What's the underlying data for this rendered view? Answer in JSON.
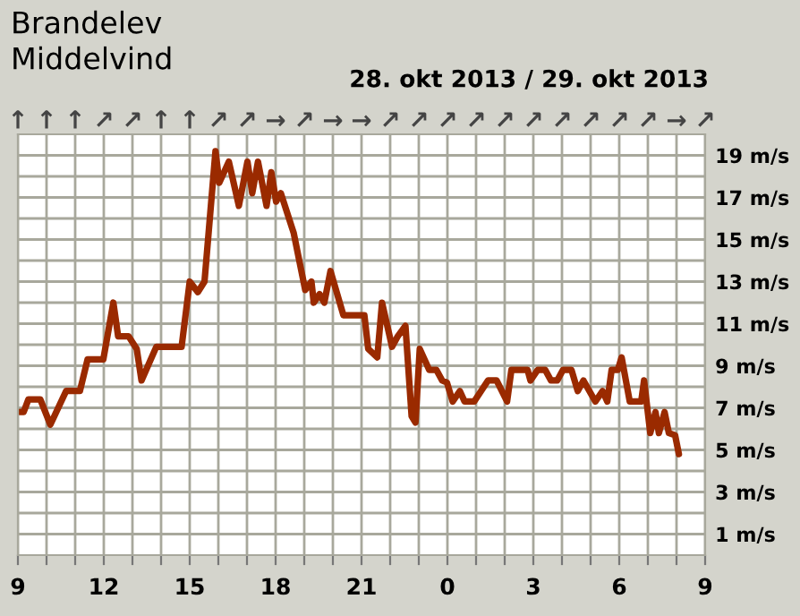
{
  "chart_data": {
    "type": "line",
    "title": "Brandelev",
    "subtitle": "Middelvind",
    "annotations": [
      "28. okt 2013 / 29. okt 2013",
      "↑ ↑ ↑ ↗ ↗ ↑ ↑ ↗ ↗ → ↗ → → ↗ ↗ ↗ ↗ ↗ ↗ ↗ ↗ ↗ ↗ → ↗"
    ],
    "series": [
      {
        "color": "#9a2a00",
        "x": [
          "2013-10-28T09:04",
          "2013-10-28T09:12",
          "2013-10-28T09:22",
          "2013-10-28T09:47",
          "2013-10-28T10:08",
          "2013-10-28T10:41",
          "2013-10-28T11:10",
          "2013-10-28T11:26",
          "2013-10-28T11:59",
          "2013-10-28T12:20",
          "2013-10-28T12:30",
          "2013-10-28T12:52",
          "2013-10-28T13:09",
          "2013-10-28T13:19",
          "2013-10-28T13:50",
          "2013-10-28T14:43",
          "2013-10-28T15:00",
          "2013-10-28T15:17",
          "2013-10-28T15:31",
          "2013-10-28T15:54",
          "2013-10-28T16:02",
          "2013-10-28T16:22",
          "2013-10-28T16:43",
          "2013-10-28T17:01",
          "2013-10-28T17:11",
          "2013-10-28T17:23",
          "2013-10-28T17:41",
          "2013-10-28T17:51",
          "2013-10-28T18:01",
          "2013-10-28T18:11",
          "2013-10-28T18:38",
          "2013-10-28T19:02",
          "2013-10-28T19:15",
          "2013-10-28T19:20",
          "2013-10-28T19:32",
          "2013-10-28T19:42",
          "2013-10-28T19:55",
          "2013-10-28T20:22",
          "2013-10-28T21:06",
          "2013-10-28T21:14",
          "2013-10-28T21:33",
          "2013-10-28T21:43",
          "2013-10-28T22:04",
          "2013-10-28T22:16",
          "2013-10-28T22:32",
          "2013-10-28T22:45",
          "2013-10-28T22:53",
          "2013-10-28T23:02",
          "2013-10-28T23:22",
          "2013-10-28T23:37",
          "2013-10-28T23:49",
          "2013-10-28T23:59",
          "2013-10-29T00:11",
          "2013-10-29T00:26",
          "2013-10-29T00:36",
          "2013-10-29T00:56",
          "2013-10-29T01:25",
          "2013-10-29T01:43",
          "2013-10-29T02:05",
          "2013-10-29T02:14",
          "2013-10-29T02:48",
          "2013-10-29T02:54",
          "2013-10-29T03:09",
          "2013-10-29T03:25",
          "2013-10-29T03:37",
          "2013-10-29T03:50",
          "2013-10-29T04:02",
          "2013-10-29T04:20",
          "2013-10-29T04:33",
          "2013-10-29T04:45",
          "2013-10-29T05:10",
          "2013-10-29T05:25",
          "2013-10-29T05:35",
          "2013-10-29T05:44",
          "2013-10-29T05:57",
          "2013-10-29T06:05",
          "2013-10-29T06:22",
          "2013-10-29T06:46",
          "2013-10-29T06:52",
          "2013-10-29T07:05",
          "2013-10-29T07:16",
          "2013-10-29T07:23",
          "2013-10-29T07:35",
          "2013-10-29T07:44",
          "2013-10-29T07:57",
          "2013-10-29T08:05"
        ],
        "values": [
          6.8,
          6.8,
          7.4,
          7.4,
          6.2,
          7.8,
          7.8,
          9.3,
          9.3,
          12.0,
          10.4,
          10.4,
          9.8,
          8.3,
          9.9,
          9.9,
          13.0,
          12.5,
          13.0,
          19.2,
          17.7,
          18.7,
          16.6,
          18.7,
          17.2,
          18.7,
          16.6,
          18.2,
          16.8,
          17.2,
          15.3,
          12.6,
          13.0,
          12.0,
          12.4,
          12.0,
          13.5,
          11.4,
          11.4,
          9.8,
          9.4,
          12.0,
          9.9,
          10.4,
          10.9,
          6.6,
          6.3,
          9.8,
          8.8,
          8.8,
          8.3,
          8.2,
          7.3,
          7.8,
          7.3,
          7.3,
          8.3,
          8.3,
          7.3,
          8.8,
          8.8,
          8.3,
          8.8,
          8.8,
          8.3,
          8.3,
          8.8,
          8.8,
          7.8,
          8.3,
          7.3,
          7.8,
          7.3,
          8.8,
          8.8,
          9.4,
          7.3,
          7.3,
          8.3,
          5.8,
          6.8,
          5.8,
          6.8,
          5.8,
          5.7,
          4.8
        ]
      }
    ],
    "xlim": [
      "2013-10-28T09:00",
      "2013-10-29T09:00"
    ],
    "xticks": [
      {
        "value": "2013-10-28T09:00",
        "label": "9"
      },
      {
        "value": "2013-10-28T10:00",
        "label": null
      },
      {
        "value": "2013-10-28T11:00",
        "label": null
      },
      {
        "value": "2013-10-28T12:00",
        "label": "12"
      },
      {
        "value": "2013-10-28T13:00",
        "label": null
      },
      {
        "value": "2013-10-28T14:00",
        "label": null
      },
      {
        "value": "2013-10-28T15:00",
        "label": "15"
      },
      {
        "value": "2013-10-28T16:00",
        "label": null
      },
      {
        "value": "2013-10-28T17:00",
        "label": null
      },
      {
        "value": "2013-10-28T18:00",
        "label": "18"
      },
      {
        "value": "2013-10-28T19:00",
        "label": null
      },
      {
        "value": "2013-10-28T20:00",
        "label": null
      },
      {
        "value": "2013-10-28T21:00",
        "label": "21"
      },
      {
        "value": "2013-10-28T22:00",
        "label": null
      },
      {
        "value": "2013-10-28T23:00",
        "label": null
      },
      {
        "value": "2013-10-29T00:00",
        "label": "0"
      },
      {
        "value": "2013-10-29T01:00",
        "label": null
      },
      {
        "value": "2013-10-29T02:00",
        "label": null
      },
      {
        "value": "2013-10-29T03:00",
        "label": "3"
      },
      {
        "value": "2013-10-29T04:00",
        "label": null
      },
      {
        "value": "2013-10-29T05:00",
        "label": null
      },
      {
        "value": "2013-10-29T06:00",
        "label": "6"
      },
      {
        "value": "2013-10-29T07:00",
        "label": null
      },
      {
        "value": "2013-10-29T08:00",
        "label": null
      },
      {
        "value": "2013-10-29T09:00",
        "label": "9"
      }
    ],
    "ylim": [
      0,
      20
    ],
    "yticks": [
      {
        "value": 1,
        "label": "1 m/s"
      },
      {
        "value": 2,
        "label": null
      },
      {
        "value": 3,
        "label": "3 m/s"
      },
      {
        "value": 4,
        "label": null
      },
      {
        "value": 5,
        "label": "5 m/s"
      },
      {
        "value": 6,
        "label": null
      },
      {
        "value": 7,
        "label": "7 m/s"
      },
      {
        "value": 8,
        "label": null
      },
      {
        "value": 9,
        "label": "9 m/s"
      },
      {
        "value": 10,
        "label": null
      },
      {
        "value": 11,
        "label": "11 m/s"
      },
      {
        "value": 12,
        "label": null
      },
      {
        "value": 13,
        "label": "13 m/s"
      },
      {
        "value": 14,
        "label": null
      },
      {
        "value": 15,
        "label": "15 m/s"
      },
      {
        "value": 16,
        "label": null
      },
      {
        "value": 17,
        "label": "17 m/s"
      },
      {
        "value": 18,
        "label": null
      },
      {
        "value": 19,
        "label": "19 m/s"
      }
    ],
    "grid": true,
    "legend": false,
    "marker": "none",
    "line_style": "solid"
  }
}
